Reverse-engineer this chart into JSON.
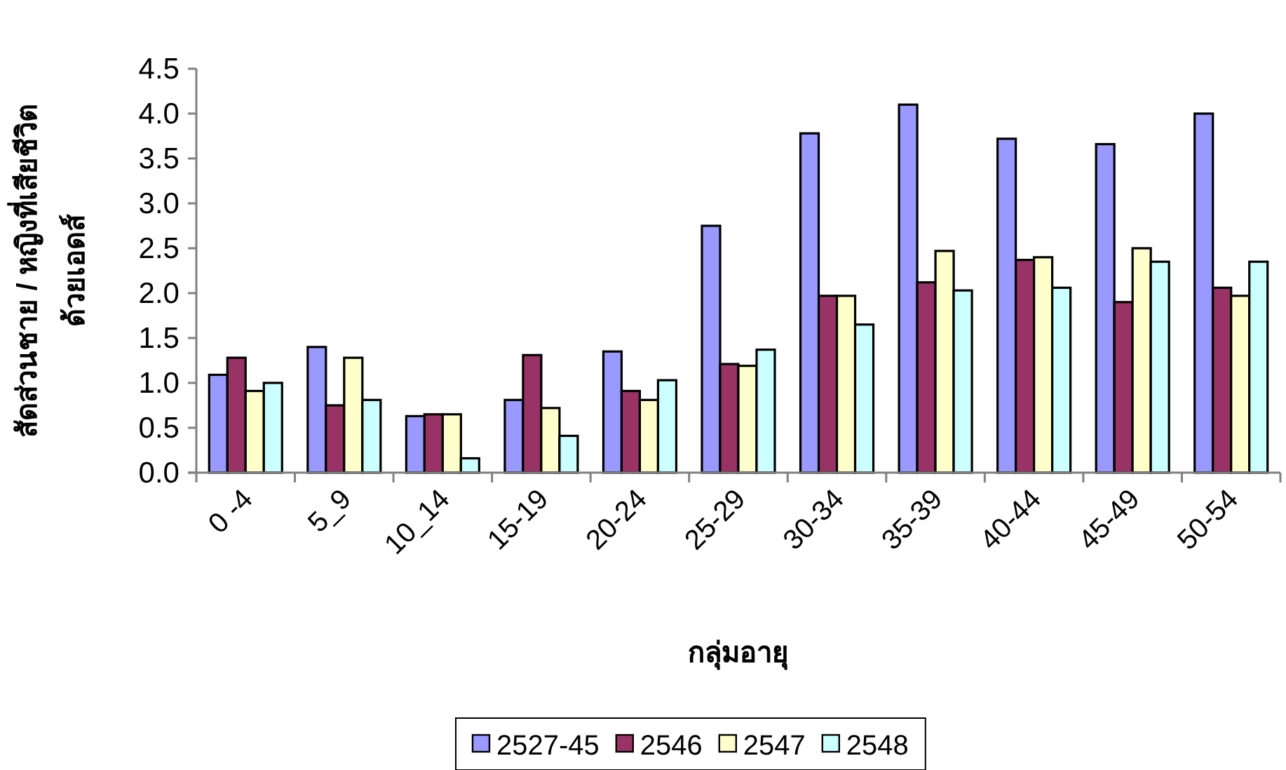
{
  "chart_data": {
    "type": "bar",
    "xlabel": "กลุ่มอายุ",
    "ylabel": "สัดส่วนชาย / หญิงที่เสียชีวิต\nด้วยเอดส์",
    "categories": [
      "0 -4",
      "5_9",
      "10_14",
      "15-19",
      "20-24",
      "25-29",
      "30-34",
      "35-39",
      "40-44",
      "45-49",
      "50-54"
    ],
    "series": [
      {
        "name": "2527-45",
        "color": "#9999ff",
        "values": [
          1.09,
          1.4,
          0.63,
          0.81,
          1.35,
          2.75,
          3.78,
          4.1,
          3.72,
          3.66,
          4.0
        ]
      },
      {
        "name": "2546",
        "color": "#993366",
        "values": [
          1.28,
          0.75,
          0.65,
          1.31,
          0.91,
          1.21,
          1.97,
          2.12,
          2.37,
          1.9,
          2.06
        ]
      },
      {
        "name": "2547",
        "color": "#ffffcc",
        "values": [
          0.91,
          1.28,
          0.65,
          0.72,
          0.81,
          1.19,
          1.97,
          2.47,
          2.4,
          2.5,
          1.97
        ]
      },
      {
        "name": "2548",
        "color": "#ccffff",
        "values": [
          1.0,
          0.81,
          0.16,
          0.41,
          1.03,
          1.37,
          1.65,
          2.03,
          2.06,
          2.35,
          2.35
        ]
      }
    ],
    "ylim": [
      0,
      4.5
    ],
    "yticks": [
      {
        "value": 0,
        "label": "0.0"
      },
      {
        "value": 0.5,
        "label": "0.5"
      },
      {
        "value": 1,
        "label": "1.0"
      },
      {
        "value": 1.5,
        "label": "1.5"
      },
      {
        "value": 2,
        "label": "2.0"
      },
      {
        "value": 2.5,
        "label": "2.5"
      },
      {
        "value": 3,
        "label": "3.0"
      },
      {
        "value": 3.5,
        "label": "3.5"
      },
      {
        "value": 4,
        "label": "4.0"
      },
      {
        "value": 4.5,
        "label": "4.5"
      }
    ],
    "grid": false,
    "legend": "bottom"
  }
}
